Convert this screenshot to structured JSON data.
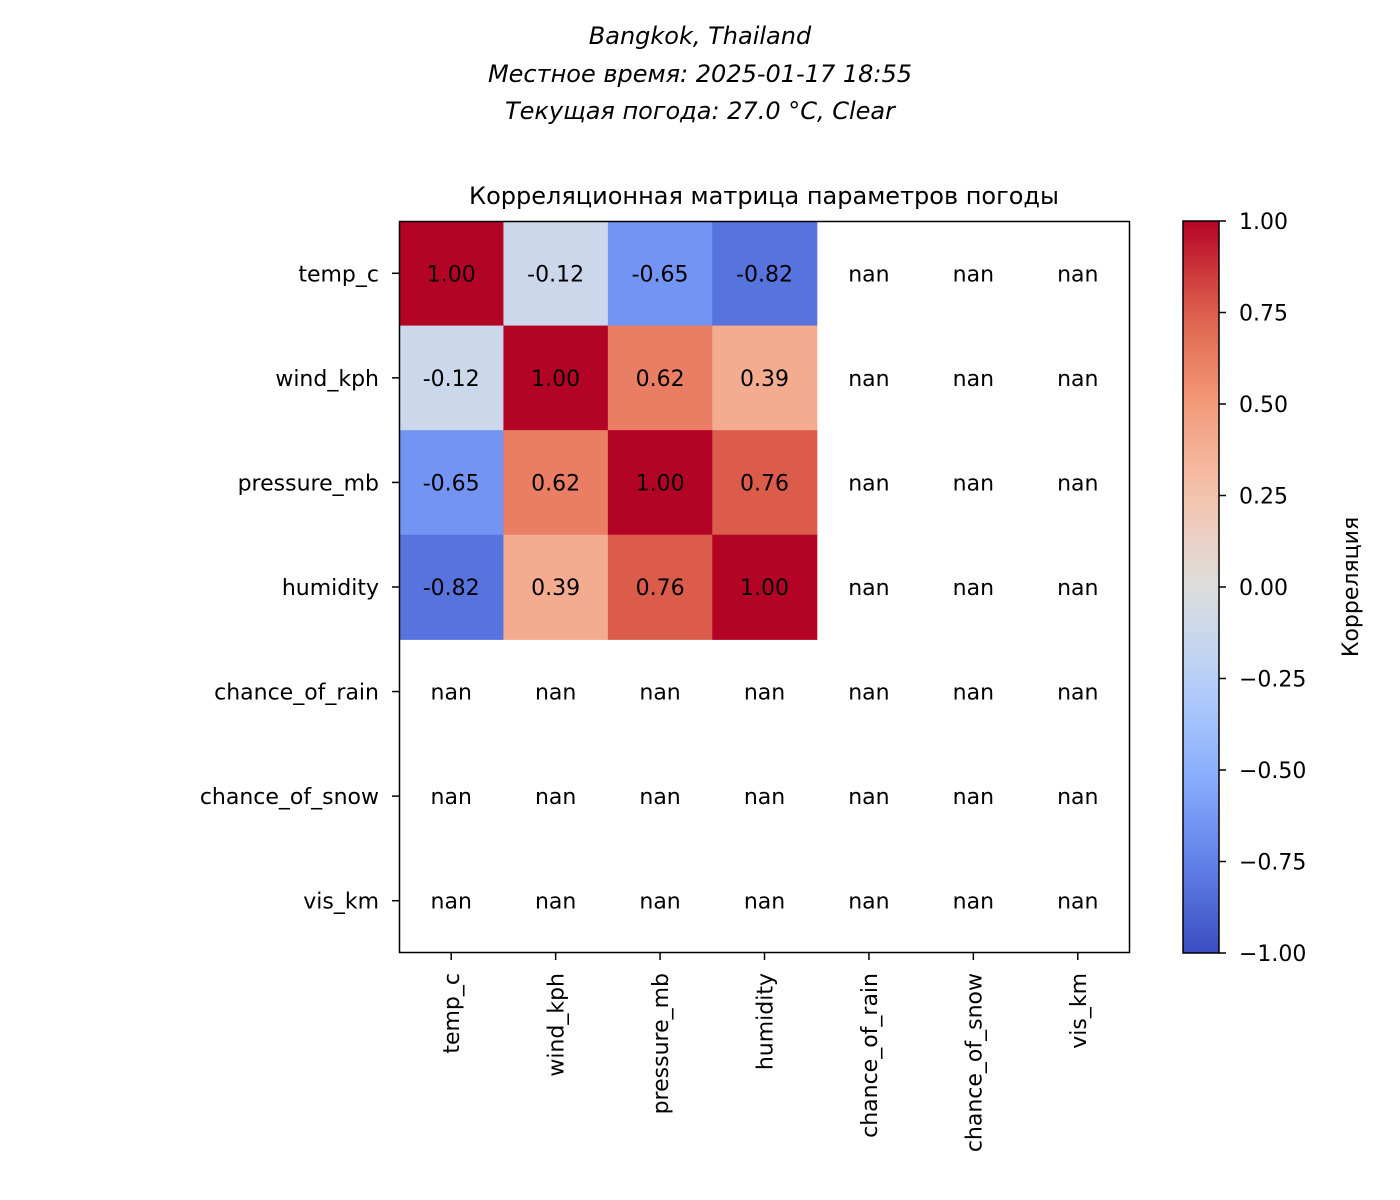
{
  "header": {
    "lines": [
      "Bangkok, Thailand",
      "Местное время: 2025-01-17 18:55",
      "Текущая погода: 27.0 °C, Clear"
    ]
  },
  "chart_data": {
    "type": "heatmap",
    "title": "Корреляционная матрица параметров погоды",
    "rows": [
      "temp_c",
      "wind_kph",
      "pressure_mb",
      "humidity",
      "chance_of_rain",
      "chance_of_snow",
      "vis_km"
    ],
    "columns": [
      "temp_c",
      "wind_kph",
      "pressure_mb",
      "humidity",
      "chance_of_rain",
      "chance_of_snow",
      "vis_km"
    ],
    "values": [
      [
        1.0,
        -0.12,
        -0.65,
        -0.82,
        null,
        null,
        null
      ],
      [
        -0.12,
        1.0,
        0.62,
        0.39,
        null,
        null,
        null
      ],
      [
        -0.65,
        0.62,
        1.0,
        0.76,
        null,
        null,
        null
      ],
      [
        -0.82,
        0.39,
        0.76,
        1.0,
        null,
        null,
        null
      ],
      [
        null,
        null,
        null,
        null,
        null,
        null,
        null
      ],
      [
        null,
        null,
        null,
        null,
        null,
        null,
        null
      ],
      [
        null,
        null,
        null,
        null,
        null,
        null,
        null
      ]
    ],
    "cell_labels": [
      [
        "1.00",
        "-0.12",
        "-0.65",
        "-0.82",
        "nan",
        "nan",
        "nan"
      ],
      [
        "-0.12",
        "1.00",
        "0.62",
        "0.39",
        "nan",
        "nan",
        "nan"
      ],
      [
        "-0.65",
        "0.62",
        "1.00",
        "0.76",
        "nan",
        "nan",
        "nan"
      ],
      [
        "-0.82",
        "0.39",
        "0.76",
        "1.00",
        "nan",
        "nan",
        "nan"
      ],
      [
        "nan",
        "nan",
        "nan",
        "nan",
        "nan",
        "nan",
        "nan"
      ],
      [
        "nan",
        "nan",
        "nan",
        "nan",
        "nan",
        "nan",
        "nan"
      ],
      [
        "nan",
        "nan",
        "nan",
        "nan",
        "nan",
        "nan",
        "nan"
      ]
    ],
    "colormap": "coolwarm",
    "vmin": -1,
    "vmax": 1,
    "colorbar": {
      "label": "Корреляция",
      "ticks": [
        1.0,
        0.75,
        0.5,
        0.25,
        0.0,
        -0.25,
        -0.5,
        -0.75,
        -1.0
      ],
      "tick_labels": [
        "1.00",
        "0.75",
        "0.50",
        "0.25",
        "0.00",
        "−0.25",
        "−0.50",
        "−0.75",
        "−1.00"
      ]
    }
  }
}
